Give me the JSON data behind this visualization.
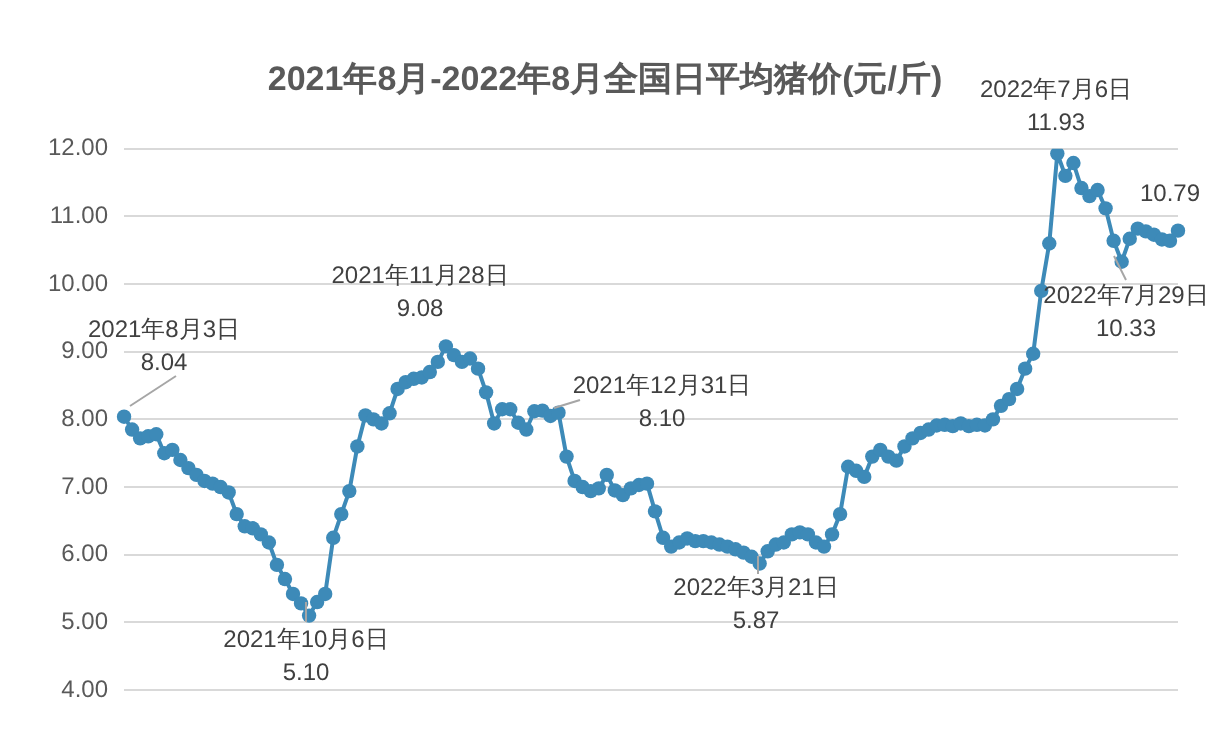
{
  "chart_data": {
    "type": "line",
    "title": "2021年8月-2022年8月全国日平均猪价(元/斤)",
    "categories": [
      null,
      null,
      null,
      null,
      null,
      null,
      null,
      null,
      null,
      null,
      null,
      null,
      null,
      null,
      null,
      null,
      null,
      null,
      null,
      null,
      null,
      null,
      null,
      null,
      null,
      null,
      null,
      null,
      null,
      null,
      null,
      null,
      null,
      null,
      null,
      null,
      null,
      null,
      null,
      null,
      null,
      null,
      null,
      null,
      null,
      null,
      null,
      null,
      null,
      null,
      null,
      null,
      null,
      null,
      null,
      null,
      null,
      null,
      null,
      null,
      null,
      null,
      null,
      null,
      null,
      null,
      null,
      null,
      null,
      null,
      null,
      null,
      null,
      null,
      null,
      null,
      null,
      null,
      null,
      null,
      null,
      null,
      null,
      null,
      null,
      null,
      null,
      null,
      null,
      null,
      null,
      null,
      null,
      null,
      null,
      null,
      null,
      null,
      null,
      null,
      null,
      null,
      null,
      null,
      null,
      null,
      null,
      null,
      null,
      null,
      null,
      null,
      null,
      null,
      null,
      null,
      null,
      null,
      null,
      null,
      null,
      null,
      null,
      null,
      null,
      null,
      null,
      null,
      null,
      null,
      null,
      null
    ],
    "series": [
      {
        "color": "#3d8ab8",
        "values": [
          8.04,
          7.85,
          7.72,
          7.75,
          7.78,
          7.5,
          7.55,
          7.4,
          7.28,
          7.18,
          7.09,
          7.05,
          7.0,
          6.92,
          6.6,
          6.42,
          6.39,
          6.3,
          6.18,
          5.85,
          5.64,
          5.42,
          5.28,
          5.1,
          5.3,
          5.42,
          6.25,
          6.6,
          6.94,
          7.6,
          8.06,
          8.0,
          7.94,
          8.09,
          8.45,
          8.55,
          8.6,
          8.62,
          8.7,
          8.85,
          9.08,
          8.95,
          8.85,
          8.9,
          8.75,
          8.4,
          7.94,
          8.15,
          8.15,
          7.95,
          7.85,
          8.12,
          8.13,
          8.05,
          8.1,
          7.45,
          7.09,
          7.0,
          6.94,
          6.98,
          7.18,
          6.95,
          6.88,
          6.98,
          7.03,
          7.05,
          6.64,
          6.25,
          6.12,
          6.18,
          6.24,
          6.2,
          6.2,
          6.18,
          6.15,
          6.12,
          6.08,
          6.03,
          5.97,
          5.87,
          6.05,
          6.15,
          6.18,
          6.3,
          6.33,
          6.3,
          6.18,
          6.12,
          6.3,
          6.6,
          7.3,
          7.24,
          7.15,
          7.45,
          7.55,
          7.45,
          7.39,
          7.6,
          7.72,
          7.8,
          7.85,
          7.91,
          7.92,
          7.9,
          7.94,
          7.9,
          7.92,
          7.91,
          8.0,
          8.2,
          8.3,
          8.45,
          8.75,
          8.97,
          9.9,
          10.6,
          11.93,
          11.6,
          11.79,
          11.42,
          11.3,
          11.39,
          11.12,
          10.64,
          10.33,
          10.67,
          10.82,
          10.78,
          10.73,
          10.66,
          10.64,
          10.79
        ]
      }
    ],
    "ylim": [
      4,
      12
    ],
    "yticks": [
      {
        "value": 4,
        "label": "4.00"
      },
      {
        "value": 5,
        "label": "5.00"
      },
      {
        "value": 6,
        "label": "6.00"
      },
      {
        "value": 7,
        "label": "7.00"
      },
      {
        "value": 8,
        "label": "8.00"
      },
      {
        "value": 9,
        "label": "9.00"
      },
      {
        "value": 10,
        "label": "10.00"
      },
      {
        "value": 11,
        "label": "11.00"
      },
      {
        "value": 12,
        "label": "12.00"
      }
    ],
    "grid": "y",
    "legend": false,
    "marker": "circle",
    "line_style": "solid",
    "tick_labels": "y",
    "annotations": [
      "2021年8月3日\n8.04",
      "2021年11月28日\n9.08",
      "2021年12月31日\n8.10",
      "2021年10月6日\n5.10",
      "2022年3月21日\n5.87",
      "2022年7月6日\n11.93",
      "2022年7月29日\n10.33",
      "10.79"
    ]
  }
}
